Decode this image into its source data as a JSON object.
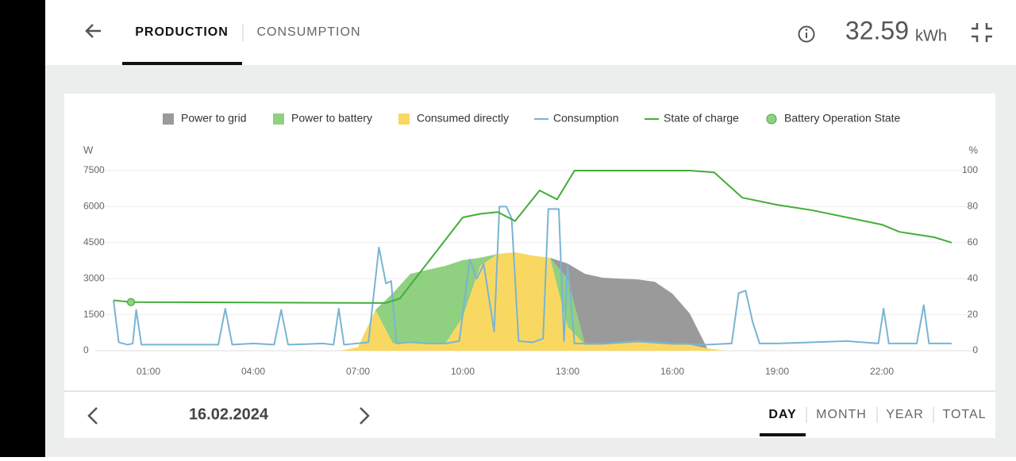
{
  "header": {
    "tabs": [
      "PRODUCTION",
      "CONSUMPTION"
    ],
    "total": "32.59",
    "unit": "kWh"
  },
  "chart_data": {
    "type": "area",
    "stacked": true,
    "y_label": "W",
    "y2_label": "%",
    "xlim": [
      0,
      24
    ],
    "xticks": [
      {
        "value": 1,
        "label": "01:00"
      },
      {
        "value": 4,
        "label": "04:00"
      },
      {
        "value": 7,
        "label": "07:00"
      },
      {
        "value": 10,
        "label": "10:00"
      },
      {
        "value": 13,
        "label": "13:00"
      },
      {
        "value": 16,
        "label": "16:00"
      },
      {
        "value": 19,
        "label": "19:00"
      },
      {
        "value": 22,
        "label": "22:00"
      }
    ],
    "ylim": [
      0,
      7500
    ],
    "yticks": [
      0,
      1500,
      3000,
      4500,
      6000,
      7500
    ],
    "y2lim": [
      0,
      100
    ],
    "y2ticks": [
      0,
      20,
      40,
      60,
      80,
      100
    ],
    "grid": true,
    "series": [
      {
        "name": "Power to grid",
        "type": "area",
        "stack": 2,
        "color": "#9a9a9a",
        "x": [
          6.5,
          7,
          7.5,
          8,
          8.5,
          9,
          9.5,
          10,
          10.5,
          11,
          11.5,
          12,
          12.5,
          13,
          13.5,
          14,
          14.5,
          15,
          15.5,
          16,
          16.5,
          17,
          17.5
        ],
        "values": [
          0,
          0,
          0,
          0,
          0,
          0,
          0,
          0,
          0,
          0,
          0,
          0,
          0,
          630,
          2950,
          2790,
          2700,
          2620,
          2570,
          2130,
          1300,
          0,
          0
        ]
      },
      {
        "name": "Power to battery",
        "type": "area",
        "stack": 1,
        "color": "#8fd081",
        "x": [
          6.5,
          7,
          7.5,
          8,
          8.5,
          9,
          9.5,
          10,
          10.5,
          11,
          11.5,
          12,
          12.5,
          13,
          13.5,
          14,
          14.5,
          15,
          15.5,
          16,
          16.5,
          17,
          17.5
        ],
        "values": [
          0,
          0,
          0,
          2100,
          2850,
          3070,
          3230,
          2370,
          340,
          0,
          0,
          0,
          0,
          2000,
          0,
          0,
          0,
          0,
          0,
          0,
          0,
          0,
          0
        ]
      },
      {
        "name": "Consumed directly",
        "type": "area",
        "stack": 0,
        "color": "#f9d862",
        "x": [
          6.5,
          7,
          7.5,
          8,
          8.5,
          9,
          9.5,
          10,
          10.5,
          11,
          11.5,
          12,
          12.5,
          13,
          13.5,
          14,
          14.5,
          15,
          15.5,
          16,
          16.5,
          17,
          17.5
        ],
        "values": [
          0,
          150,
          1700,
          300,
          350,
          300,
          300,
          1400,
          3530,
          4030,
          4100,
          3960,
          3870,
          1000,
          250,
          250,
          300,
          350,
          300,
          250,
          250,
          100,
          0
        ]
      },
      {
        "name": "Consumption",
        "type": "line",
        "color": "#79b4d3",
        "x": [
          0,
          0.15,
          0.4,
          0.55,
          0.65,
          0.8,
          2,
          3,
          3.2,
          3.4,
          4,
          4.6,
          4.8,
          5,
          6,
          6.3,
          6.45,
          6.6,
          7.3,
          7.6,
          7.8,
          7.95,
          8.1,
          8.5,
          9,
          9.5,
          9.9,
          10.2,
          10.4,
          10.6,
          10.9,
          11.05,
          11.25,
          11.4,
          11.6,
          12,
          12.3,
          12.45,
          12.75,
          12.9,
          13,
          13.2,
          14,
          15,
          16,
          17,
          17.7,
          17.9,
          18.1,
          18.3,
          18.5,
          19,
          20,
          21,
          21.9,
          22.05,
          22.2,
          23,
          23.2,
          23.35,
          24
        ],
        "values": [
          2100,
          350,
          250,
          300,
          1700,
          250,
          250,
          250,
          1750,
          250,
          300,
          250,
          1700,
          250,
          300,
          250,
          1750,
          250,
          350,
          4300,
          2800,
          2900,
          300,
          350,
          300,
          300,
          400,
          3800,
          3000,
          3600,
          800,
          6000,
          6000,
          5500,
          400,
          350,
          500,
          5900,
          5900,
          400,
          3600,
          300,
          300,
          400,
          300,
          250,
          300,
          2400,
          2500,
          1200,
          300,
          300,
          350,
          400,
          300,
          1750,
          300,
          300,
          1900,
          300,
          300
        ]
      },
      {
        "name": "State of charge",
        "type": "line",
        "axis": "y2",
        "color": "#44ad3a",
        "x": [
          0,
          0.5,
          7.8,
          8.2,
          10,
          10.5,
          11,
          11.5,
          12.2,
          12.7,
          13.2,
          16.5,
          17.2,
          18,
          19,
          20,
          21,
          22,
          22.5,
          23.5,
          24
        ],
        "values": [
          28,
          27,
          26.5,
          29,
          74,
          76,
          77,
          72,
          89,
          84,
          100,
          100,
          99,
          85,
          81,
          78,
          74,
          70,
          66,
          63,
          60
        ]
      },
      {
        "name": "Battery Operation State",
        "type": "scatter",
        "axis": "y2",
        "color": "#8fd081",
        "x": [
          0.5
        ],
        "values": [
          27
        ]
      }
    ]
  },
  "footer": {
    "date": "16.02.2024",
    "periods": [
      "DAY",
      "MONTH",
      "YEAR",
      "TOTAL"
    ]
  }
}
